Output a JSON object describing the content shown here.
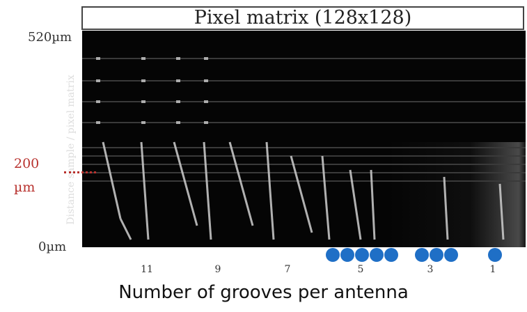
{
  "title": "Pixel matrix (128x128)",
  "y_axis": {
    "top_label": "520µm",
    "bottom_label": "0µm",
    "marker_value": "200",
    "marker_unit": "µm",
    "label": "Distance sample / pixel matrix"
  },
  "x_ticks": [
    "11",
    "9",
    "7",
    "5",
    "3",
    "1"
  ],
  "caption": "Number of grooves per antenna",
  "colors": {
    "marker": "#b8322e",
    "dots": "#1f6fc6"
  }
}
